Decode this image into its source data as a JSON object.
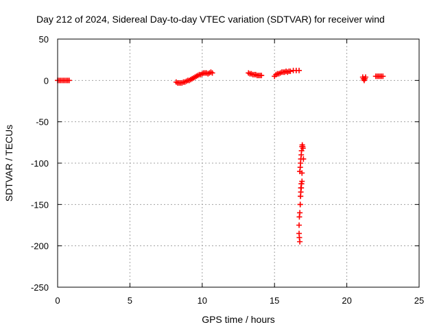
{
  "chart_data": {
    "type": "scatter",
    "title": "Day 212 of 2024, Sidereal Day-to-day VTEC variation (SDTVAR) for receiver wind",
    "xlabel": "GPS time / hours",
    "ylabel": "SDTVAR / TECUs",
    "xlim": [
      0,
      25
    ],
    "ylim": [
      -250,
      50
    ],
    "xticks": [
      0,
      5,
      10,
      15,
      20,
      25
    ],
    "yticks": [
      50,
      0,
      -50,
      -100,
      -150,
      -200,
      -250
    ],
    "xtick_labels": [
      "0",
      "5",
      "10",
      "15",
      "20",
      "25"
    ],
    "ytick_labels": [
      "50",
      "0",
      "-50",
      "-100",
      "-150",
      "-200",
      "-250"
    ],
    "grid": true,
    "marker": "plus",
    "color": "#ff0000",
    "series": [
      {
        "x": [
          0.0,
          0.1,
          0.2,
          0.3,
          0.4,
          0.5,
          0.6,
          0.7,
          0.8,
          8.2,
          8.3,
          8.4,
          8.5,
          8.6,
          8.7,
          8.8,
          8.9,
          9.0,
          9.1,
          9.2,
          9.3,
          9.4,
          9.5,
          9.6,
          9.7,
          9.8,
          9.9,
          10.0,
          10.1,
          10.2,
          10.3,
          10.4,
          10.5,
          10.6,
          10.7,
          13.2,
          13.3,
          13.4,
          13.5,
          13.6,
          13.7,
          13.8,
          13.9,
          14.0,
          14.1,
          15.0,
          15.1,
          15.2,
          15.3,
          15.4,
          15.5,
          15.6,
          15.7,
          15.8,
          15.9,
          16.0,
          16.1,
          16.3,
          16.5,
          16.7,
          16.75,
          16.78,
          16.8,
          16.82,
          16.85,
          16.87,
          16.9,
          16.92,
          16.95,
          16.97,
          17.0,
          16.9,
          16.85,
          16.82,
          16.8,
          16.78,
          16.75,
          16.72,
          16.7,
          16.7,
          16.72,
          16.75,
          16.78,
          16.8,
          16.82,
          16.85,
          16.87,
          16.9,
          21.1,
          21.15,
          21.2,
          21.25,
          21.3,
          22.0,
          22.1,
          22.2,
          22.3,
          22.4,
          22.5
        ],
        "y": [
          0,
          0,
          0,
          0,
          0,
          0,
          0,
          0,
          0,
          -2,
          -3,
          -3,
          -3,
          -3,
          -2,
          -2,
          -1,
          0,
          0,
          1,
          2,
          3,
          4,
          5,
          6,
          7,
          7,
          8,
          9,
          9,
          9,
          8,
          9,
          10,
          9,
          9,
          8,
          8,
          7,
          7,
          7,
          6,
          6,
          6,
          6,
          5,
          7,
          8,
          8,
          9,
          10,
          10,
          10,
          11,
          10,
          11,
          11,
          12,
          12,
          12,
          -110,
          -105,
          -100,
          -95,
          -90,
          -85,
          -80,
          -78,
          -80,
          -82,
          -95,
          -112,
          -125,
          -130,
          -140,
          -150,
          -160,
          -165,
          -175,
          -185,
          -190,
          -195,
          -150,
          -140,
          -135,
          -130,
          -125,
          -122,
          4,
          2,
          0,
          2,
          4,
          5,
          5,
          5,
          5,
          5,
          5
        ]
      }
    ]
  }
}
